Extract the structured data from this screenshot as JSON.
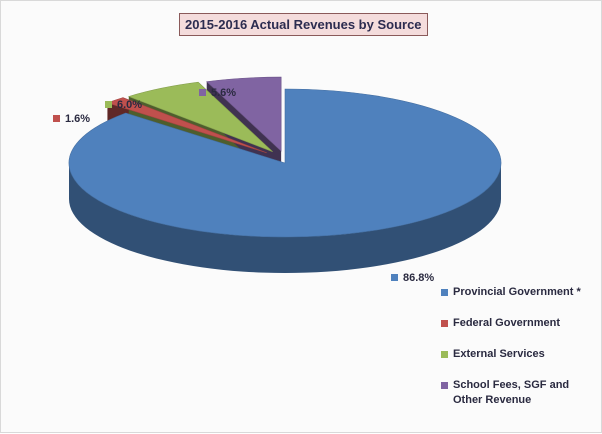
{
  "chart_data": {
    "type": "pie",
    "title": "2015-2016 Actual Revenues by Source",
    "slices": [
      {
        "name": "Provincial Government *",
        "value": 86.8,
        "label": "86.8%",
        "color": "#4f81bd"
      },
      {
        "name": "Federal Government",
        "value": 1.6,
        "label": "1.6%",
        "color": "#c0504d"
      },
      {
        "name": "External Services",
        "value": 6.0,
        "label": "6.0%",
        "color": "#9bbb59"
      },
      {
        "name": "School Fees, SGF and Other Revenue",
        "value": 5.6,
        "label": "5.6%",
        "color": "#8064a2"
      }
    ],
    "legend_position": "bottom-right",
    "style": "3d-exploded"
  }
}
